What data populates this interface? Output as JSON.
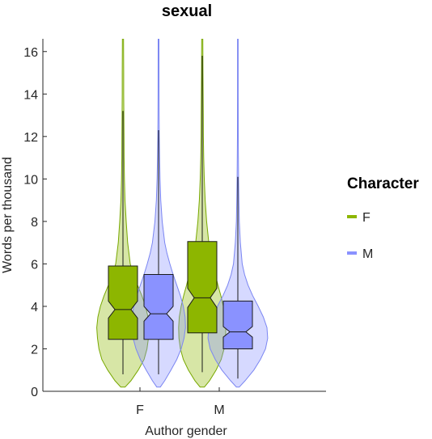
{
  "chart_data": {
    "type": "violin",
    "title": "sexual",
    "xlabel": "Author gender",
    "ylabel": "Words per thousand",
    "categories": [
      "F",
      "M"
    ],
    "ylim": [
      0,
      16.6
    ],
    "yticks": [
      0,
      2,
      4,
      6,
      8,
      10,
      12,
      14,
      16
    ],
    "legend": {
      "title": "Character",
      "placement": "right"
    },
    "series": [
      {
        "name": "F",
        "color": "#78a800",
        "fill": "#8db600",
        "stats": [
          {
            "category": "F",
            "min": 0.8,
            "q1": 2.45,
            "median": 3.85,
            "q3": 5.9,
            "max": 13.2,
            "notch_low": 3.45,
            "notch_high": 4.25,
            "density": [
              [
                0.2,
                0.15
              ],
              [
                0.5,
                0.55
              ],
              [
                1.0,
                1.05
              ],
              [
                1.5,
                1.45
              ],
              [
                2.0,
                1.65
              ],
              [
                2.5,
                1.75
              ],
              [
                3.0,
                1.8
              ],
              [
                3.5,
                1.72
              ],
              [
                4.0,
                1.55
              ],
              [
                4.5,
                1.3
              ],
              [
                5.0,
                1.0
              ],
              [
                5.5,
                0.72
              ],
              [
                6.0,
                0.5
              ],
              [
                7.0,
                0.32
              ],
              [
                8.0,
                0.22
              ],
              [
                9.0,
                0.14
              ],
              [
                10.0,
                0.1
              ],
              [
                11.0,
                0.08
              ],
              [
                12.0,
                0.07
              ],
              [
                13.0,
                0.06
              ],
              [
                14.0,
                0.05
              ],
              [
                15.0,
                0.05
              ],
              [
                16.6,
                0.04
              ]
            ]
          },
          {
            "category": "M",
            "min": 0.9,
            "q1": 2.75,
            "median": 4.4,
            "q3": 7.05,
            "max": 15.8,
            "notch_low": 3.95,
            "notch_high": 4.85,
            "density": [
              [
                0.2,
                0.15
              ],
              [
                0.5,
                0.5
              ],
              [
                1.0,
                0.95
              ],
              [
                1.5,
                1.3
              ],
              [
                2.0,
                1.5
              ],
              [
                2.5,
                1.6
              ],
              [
                3.0,
                1.62
              ],
              [
                3.5,
                1.58
              ],
              [
                4.0,
                1.45
              ],
              [
                4.5,
                1.28
              ],
              [
                5.0,
                1.08
              ],
              [
                5.5,
                0.9
              ],
              [
                6.0,
                0.72
              ],
              [
                6.5,
                0.58
              ],
              [
                7.0,
                0.45
              ],
              [
                8.0,
                0.3
              ],
              [
                9.0,
                0.2
              ],
              [
                10.0,
                0.14
              ],
              [
                11.0,
                0.1
              ],
              [
                12.0,
                0.08
              ],
              [
                13.0,
                0.07
              ],
              [
                14.0,
                0.06
              ],
              [
                15.0,
                0.05
              ],
              [
                16.6,
                0.04
              ]
            ]
          }
        ]
      },
      {
        "name": "M",
        "color": "#7b86f2",
        "fill": "#8a92ff",
        "stats": [
          {
            "category": "F",
            "min": 0.8,
            "q1": 2.45,
            "median": 3.65,
            "q3": 5.5,
            "max": 12.3,
            "notch_low": 3.3,
            "notch_high": 4.0,
            "density": [
              [
                0.2,
                0.12
              ],
              [
                0.5,
                0.42
              ],
              [
                1.0,
                0.85
              ],
              [
                1.5,
                1.25
              ],
              [
                2.0,
                1.55
              ],
              [
                2.5,
                1.75
              ],
              [
                3.0,
                1.85
              ],
              [
                3.5,
                1.82
              ],
              [
                4.0,
                1.7
              ],
              [
                4.5,
                1.5
              ],
              [
                5.0,
                1.25
              ],
              [
                5.5,
                1.0
              ],
              [
                6.0,
                0.78
              ],
              [
                6.5,
                0.58
              ],
              [
                7.0,
                0.42
              ],
              [
                8.0,
                0.25
              ],
              [
                9.0,
                0.15
              ],
              [
                10.0,
                0.1
              ],
              [
                11.0,
                0.07
              ],
              [
                12.0,
                0.05
              ],
              [
                13.0,
                0.04
              ],
              [
                14.0,
                0.035
              ],
              [
                16.6,
                0.03
              ]
            ]
          },
          {
            "category": "M",
            "min": 0.6,
            "q1": 2.0,
            "median": 2.8,
            "q3": 4.25,
            "max": 10.1,
            "notch_low": 2.55,
            "notch_high": 3.05,
            "density": [
              [
                0.2,
                0.1
              ],
              [
                0.5,
                0.5
              ],
              [
                1.0,
                1.1
              ],
              [
                1.5,
                1.55
              ],
              [
                2.0,
                1.9
              ],
              [
                2.5,
                2.05
              ],
              [
                3.0,
                2.0
              ],
              [
                3.5,
                1.75
              ],
              [
                4.0,
                1.4
              ],
              [
                4.5,
                1.02
              ],
              [
                5.0,
                0.7
              ],
              [
                5.5,
                0.46
              ],
              [
                6.0,
                0.3
              ],
              [
                7.0,
                0.17
              ],
              [
                8.0,
                0.1
              ],
              [
                9.0,
                0.07
              ],
              [
                10.0,
                0.05
              ],
              [
                11.0,
                0.04
              ],
              [
                12.0,
                0.03
              ],
              [
                14.0,
                0.025
              ],
              [
                16.6,
                0.02
              ]
            ]
          }
        ]
      }
    ]
  }
}
